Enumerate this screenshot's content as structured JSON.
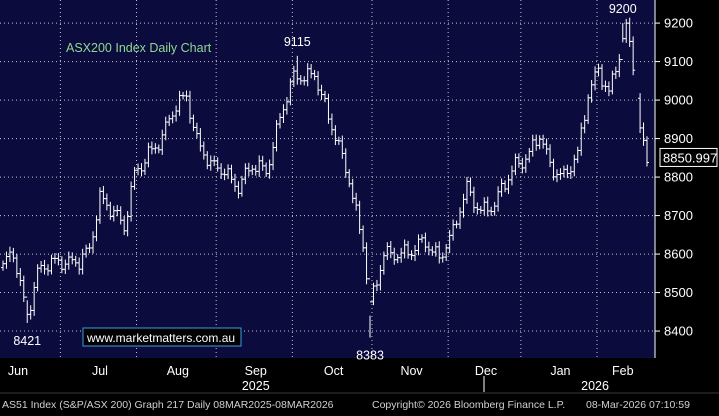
{
  "chart_data": {
    "type": "ohlc-bar",
    "title": "ASX200 Index Daily Chart",
    "watermark": "www.marketmatters.com.au",
    "ylim": [
      8330,
      9260
    ],
    "y_ticks": [
      8400,
      8500,
      8600,
      8700,
      8800,
      8900,
      9000,
      9100,
      9200
    ],
    "last_price": "8850.997",
    "x_months": [
      "Jun",
      "Jul",
      "Aug",
      "Sep",
      "Oct",
      "Nov",
      "Dec",
      "Jan",
      "Feb"
    ],
    "x_years": [
      "2025",
      "2026"
    ],
    "annotations": [
      {
        "text": "8421",
        "date_index": 7,
        "value": 8421
      },
      {
        "text": "9115",
        "date_index": 85,
        "value": 9115
      },
      {
        "text": "8383",
        "date_index": 106,
        "value": 8383
      },
      {
        "text": "9200",
        "date_index": 179,
        "value": 9200
      }
    ],
    "anchors": [
      [
        0,
        8560
      ],
      [
        3,
        8600
      ],
      [
        7,
        8450
      ],
      [
        10,
        8550
      ],
      [
        14,
        8570
      ],
      [
        18,
        8590
      ],
      [
        22,
        8580
      ],
      [
        25,
        8600
      ],
      [
        28,
        8750
      ],
      [
        32,
        8720
      ],
      [
        35,
        8660
      ],
      [
        38,
        8800
      ],
      [
        42,
        8870
      ],
      [
        46,
        8900
      ],
      [
        50,
        8980
      ],
      [
        53,
        9020
      ],
      [
        56,
        8900
      ],
      [
        60,
        8820
      ],
      [
        64,
        8820
      ],
      [
        68,
        8780
      ],
      [
        72,
        8820
      ],
      [
        76,
        8820
      ],
      [
        80,
        8960
      ],
      [
        84,
        9050
      ],
      [
        87,
        9060
      ],
      [
        90,
        9080
      ],
      [
        94,
        8950
      ],
      [
        97,
        8870
      ],
      [
        100,
        8800
      ],
      [
        104,
        8630
      ],
      [
        106,
        8460
      ],
      [
        108,
        8520
      ],
      [
        110,
        8600
      ],
      [
        114,
        8610
      ],
      [
        118,
        8600
      ],
      [
        122,
        8630
      ],
      [
        126,
        8600
      ],
      [
        130,
        8650
      ],
      [
        134,
        8770
      ],
      [
        138,
        8720
      ],
      [
        142,
        8720
      ],
      [
        145,
        8780
      ],
      [
        148,
        8840
      ],
      [
        152,
        8860
      ],
      [
        155,
        8900
      ],
      [
        158,
        8830
      ],
      [
        162,
        8810
      ],
      [
        166,
        8850
      ],
      [
        169,
        9010
      ],
      [
        172,
        9090
      ],
      [
        175,
        9020
      ],
      [
        178,
        9110
      ],
      [
        180,
        9180
      ],
      [
        182,
        9100
      ],
      [
        184,
        8930
      ],
      [
        186,
        8850
      ]
    ]
  }
}
